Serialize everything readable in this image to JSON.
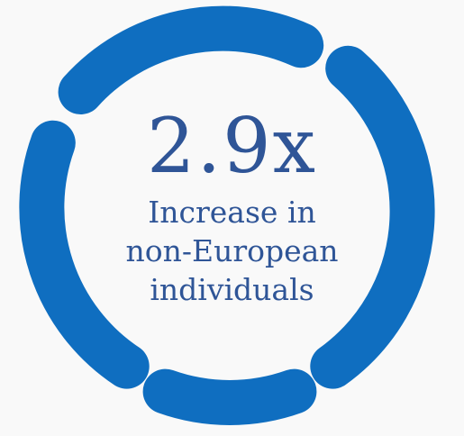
{
  "infographic": {
    "stat_value": "2.9x",
    "caption_lines": [
      "Increase in",
      "non-European",
      "individuals"
    ]
  },
  "colors": {
    "ring": "#0f6ec0",
    "text": "#2f5597",
    "background": "#f9f9f9"
  }
}
